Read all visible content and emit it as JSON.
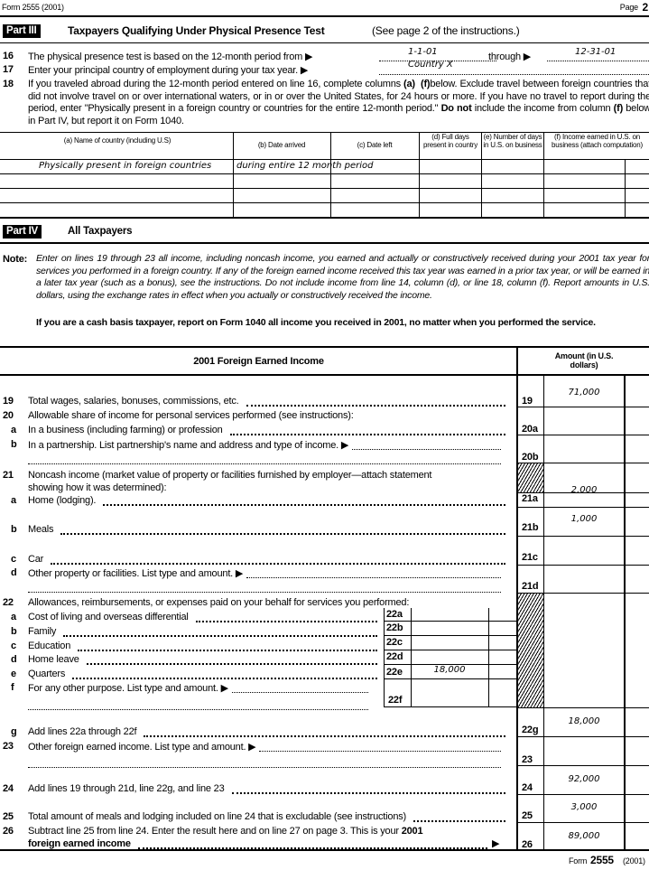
{
  "header": {
    "form_label": "Form 2555 (2001)",
    "page_label": "Page",
    "page_number": "2"
  },
  "part3": {
    "tag": "Part III",
    "title": "Taxpayers Qualifying Under Physical Presence Test",
    "title_note": "(See page 2 of the instructions.)",
    "line16": {
      "num": "16",
      "text": "The physical presence test is based on the 12-month period from ▶",
      "from": "1-1-01",
      "through_label": "through ▶",
      "to": "12-31-01"
    },
    "line17": {
      "num": "17",
      "text": "Enter your principal country of employment during your tax year. ▶",
      "value": "Country X"
    },
    "line18": {
      "num": "18",
      "text_html": "If you traveled abroad during the 12-month period entered on line 16, complete columns <b>(a)</b> &nbsp;<b>(f)</b>below. Exclude travel between foreign countries that did not involve travel on or over international waters, or in or over the United States, for 24 hours or more. If you have no travel to report during the period, enter \"Physically present in a foreign country or countries for the entire 12-month period.\" <b>Do not</b> include the income from column <b>(f)</b> below in Part IV, but report it on Form 1040."
    },
    "table": {
      "headers": [
        "(a) Name of country (including U.S)",
        "(b) Date arrived",
        "(c) Date left",
        "(d) Full days present in country",
        "(e) Number of days in U.S. on business",
        "(f) Income earned in U.S. on business (attach computation)"
      ],
      "row1_a": "Physically present in foreign countries",
      "row1_b": "during entire 12 month period"
    }
  },
  "part4": {
    "tag": "Part IV",
    "title": "All Taxpayers",
    "note_label": "Note:",
    "note_text": "Enter on lines 19 through 23 all income, including noncash income, you earned and actually or constructively received during your 2001 tax year for services you performed in a foreign country. If any of the foreign earned income received this tax year was earned in a prior tax year, or will be earned in a later tax year (such as a bonus), see the instructions. Do not include income from line 14, column (d), or line 18, column (f). Report amounts in U.S. dollars, using the exchange rates in effect when you actually or constructively received the income.",
    "cash_basis": "If you are a cash basis taxpayer, report on Form 1040 all income you received in 2001, no matter when you performed the service.",
    "section_title": "2001 Foreign Earned Income",
    "amount_header": "Amount (in U.S. dollars)",
    "lines": {
      "l19": {
        "num": "19",
        "text": "Total wages, salaries, bonuses, commissions, etc.",
        "box": "19",
        "amount": "71,000"
      },
      "l20": {
        "num": "20",
        "text": "Allowable share of income for personal services performed (see instructions):"
      },
      "l20a": {
        "num": "a",
        "text": "In a business (including farming) or profession",
        "box": "20a"
      },
      "l20b": {
        "num": "b",
        "text": "In a partnership. List partnership's name and address and type of income. ▶",
        "box": "20b"
      },
      "l21": {
        "num": "21",
        "text1": "Noncash income (market value of property or facilities furnished by employer—attach statement",
        "text2": "showing how it was determined):"
      },
      "l21a": {
        "num": "a",
        "text": "Home (lodging).",
        "box": "21a",
        "amount": "2,000"
      },
      "l21b": {
        "num": "b",
        "text": "Meals",
        "box": "21b",
        "amount": "1,000"
      },
      "l21c": {
        "num": "c",
        "text": "Car",
        "box": "21c"
      },
      "l21d": {
        "num": "d",
        "text": "Other property or facilities. List type and amount. ▶",
        "box": "21d"
      },
      "l22": {
        "num": "22",
        "text": "Allowances, reimbursements, or expenses paid on your behalf for services you performed:"
      },
      "l22a": {
        "num": "a",
        "text": "Cost of living and overseas differential",
        "box": "22a"
      },
      "l22b": {
        "num": "b",
        "text": "Family",
        "box": "22b"
      },
      "l22c": {
        "num": "c",
        "text": "Education",
        "box": "22c"
      },
      "l22d": {
        "num": "d",
        "text": "Home leave",
        "box": "22d"
      },
      "l22e": {
        "num": "e",
        "text": "Quarters",
        "box": "22e",
        "amount": "18,000"
      },
      "l22f": {
        "num": "f",
        "text": "For any other purpose. List type and amount. ▶",
        "box": "22f"
      },
      "l22g": {
        "num": "g",
        "text": "Add lines 22a through 22f",
        "box": "22g",
        "amount": "18,000"
      },
      "l23": {
        "num": "23",
        "text": "Other foreign earned income. List type and amount. ▶",
        "box": "23"
      },
      "l24": {
        "num": "24",
        "text": "Add lines 19 through 21d, line 22g, and line 23",
        "box": "24",
        "amount": "92,000"
      },
      "l25": {
        "num": "25",
        "text": "Total amount of meals and lodging included on line 24 that is excludable (see instructions)",
        "box": "25",
        "amount": "3,000"
      },
      "l26": {
        "num": "26",
        "text1": "Subtract line 25 from line 24. Enter the result here and on line 27 on page 3. This is your",
        "text1_bold": "2001",
        "text2": "foreign earned income",
        "box": "26",
        "amount": "89,000"
      }
    }
  },
  "footer": {
    "form_word": "Form",
    "form_number": "2555",
    "year": "(2001)"
  }
}
